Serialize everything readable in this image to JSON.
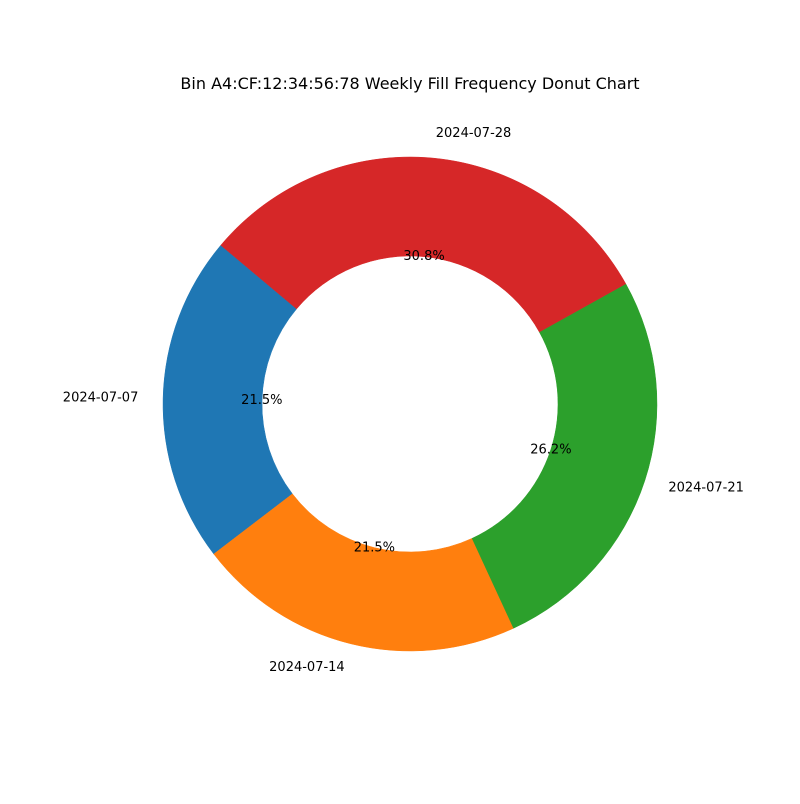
{
  "chart_data": {
    "type": "pie",
    "variant": "donut",
    "title": "Bin A4:CF:12:34:56:78 Weekly Fill Frequency Donut Chart",
    "categories": [
      "2024-07-07",
      "2024-07-14",
      "2024-07-21",
      "2024-07-28"
    ],
    "values": [
      21.5,
      21.5,
      26.2,
      30.8
    ],
    "percent_labels": [
      "21.5%",
      "21.5%",
      "26.2%",
      "30.8%"
    ],
    "colors": [
      "#1f77b4",
      "#ff7f0e",
      "#2ca02c",
      "#d62728"
    ],
    "start_angle_deg": 140,
    "direction": "counterclockwise",
    "legend": "none",
    "grid": false
  }
}
